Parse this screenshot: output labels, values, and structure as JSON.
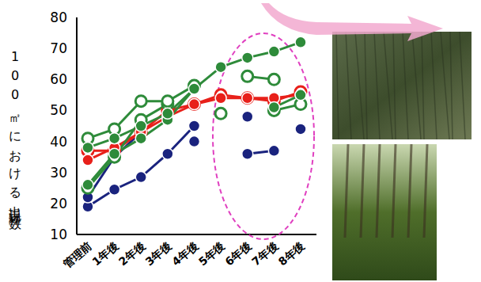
{
  "chart_data": {
    "type": "line",
    "y_label": "100㎡における出現種数",
    "categories": [
      "管理前",
      "1年後",
      "2年後",
      "3年後",
      "4年後",
      "5年後",
      "6年後",
      "7年後",
      "8年後"
    ],
    "ylim": [
      10,
      80
    ],
    "yticks": [
      10,
      20,
      30,
      40,
      50,
      60,
      70,
      80
    ],
    "grid": false,
    "series": [
      {
        "color": "#1a237e",
        "marker": "circle",
        "values": [
          19,
          24.5,
          28.5,
          36,
          45,
          null,
          48,
          null,
          44
        ]
      },
      {
        "color": "#1a237e",
        "marker": "circle",
        "values": [
          22,
          35,
          43,
          null,
          40,
          null,
          36,
          37,
          null
        ]
      },
      {
        "color": "#e8201a",
        "marker": "circle-open",
        "values": [
          37,
          37,
          43,
          50,
          52,
          55,
          54,
          53,
          56
        ]
      },
      {
        "color": "#e8201a",
        "marker": "circle",
        "values": [
          34,
          38,
          43,
          48,
          52,
          54,
          54,
          54,
          55
        ]
      },
      {
        "color": "#2e8b3a",
        "marker": "circle-open",
        "values": [
          25,
          35,
          47,
          52,
          null,
          49,
          null,
          50,
          52
        ]
      },
      {
        "color": "#2e8b3a",
        "marker": "circle",
        "values": [
          26,
          36,
          41,
          47,
          57,
          null,
          null,
          51,
          55
        ]
      },
      {
        "color": "#2e8b3a",
        "marker": "circle-open",
        "values": [
          41,
          44,
          53,
          53,
          58,
          null,
          61,
          60,
          null
        ]
      },
      {
        "color": "#2e8b3a",
        "marker": "circle",
        "values": [
          38,
          41,
          45,
          49,
          57,
          64,
          67,
          69,
          72
        ]
      }
    ]
  }
}
